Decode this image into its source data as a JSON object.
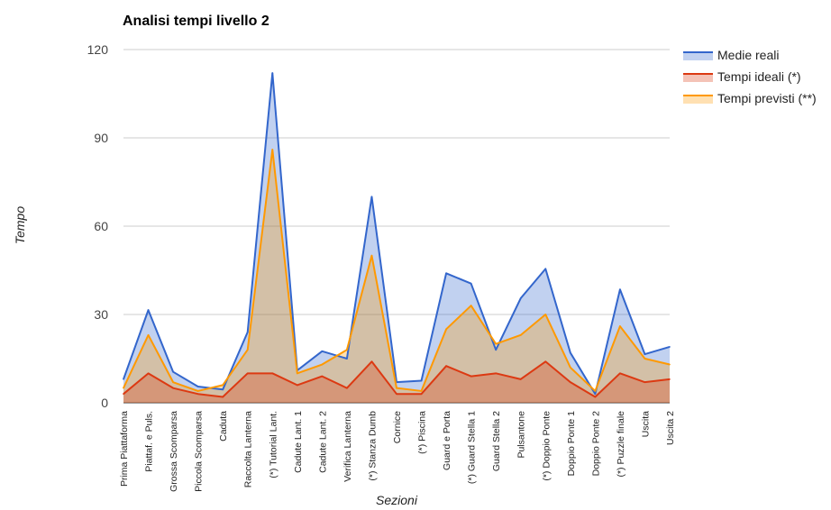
{
  "chart_data": {
    "type": "area",
    "title": "Analisi tempi livello 2",
    "xlabel": "Sezioni",
    "ylabel": "Tempo",
    "ylim": [
      0,
      120
    ],
    "yticks": [
      "0",
      "30",
      "60",
      "90",
      "120"
    ],
    "grid": true,
    "legend_position": "right",
    "categories": [
      "Prima Piattaforma",
      "Piattaf. e Puls.",
      "Grossa Scomparsa",
      "Piccola Scomparsa",
      "Caduta",
      "Raccolta Lanterna",
      "(*) Tutorial Lant.",
      "Cadute Lant. 1",
      "Cadute Lant. 2",
      "Verifica Lanterna",
      "(*) Stanza Dumb",
      "Cornice",
      "(*) Piscina",
      "Guard e Porta",
      "(*) Guard Stella 1",
      "Guard Stella 2",
      "Pulsantone",
      "(*) Doppio Ponte",
      "Doppio Ponte 1",
      "Doppio Ponte 2",
      "(*) Puzzle finale",
      "Uscita",
      "Uscita 2"
    ],
    "series": [
      {
        "name": "Medie reali",
        "color": "#3366cc",
        "values": [
          8,
          31.5,
          10.5,
          5.5,
          4.5,
          24,
          112,
          11,
          17.5,
          15,
          70,
          7,
          7.5,
          44,
          40.5,
          18,
          35.5,
          45.5,
          17,
          3,
          38.5,
          16.5,
          19
        ]
      },
      {
        "name": "Tempi ideali (*)",
        "color": "#dc3912",
        "values": [
          3,
          10,
          5,
          3,
          2,
          10,
          10,
          6,
          9,
          5,
          14,
          3,
          3,
          12.5,
          9,
          10,
          8,
          14,
          7,
          2,
          10,
          7,
          8
        ]
      },
      {
        "name": "Tempi previsti (**)",
        "color": "#ff9900",
        "values": [
          5,
          23,
          7,
          4,
          6,
          18,
          86,
          10,
          13,
          18,
          50,
          5,
          4,
          25,
          33,
          20,
          23,
          30,
          12,
          4,
          26,
          15,
          13
        ]
      }
    ]
  }
}
